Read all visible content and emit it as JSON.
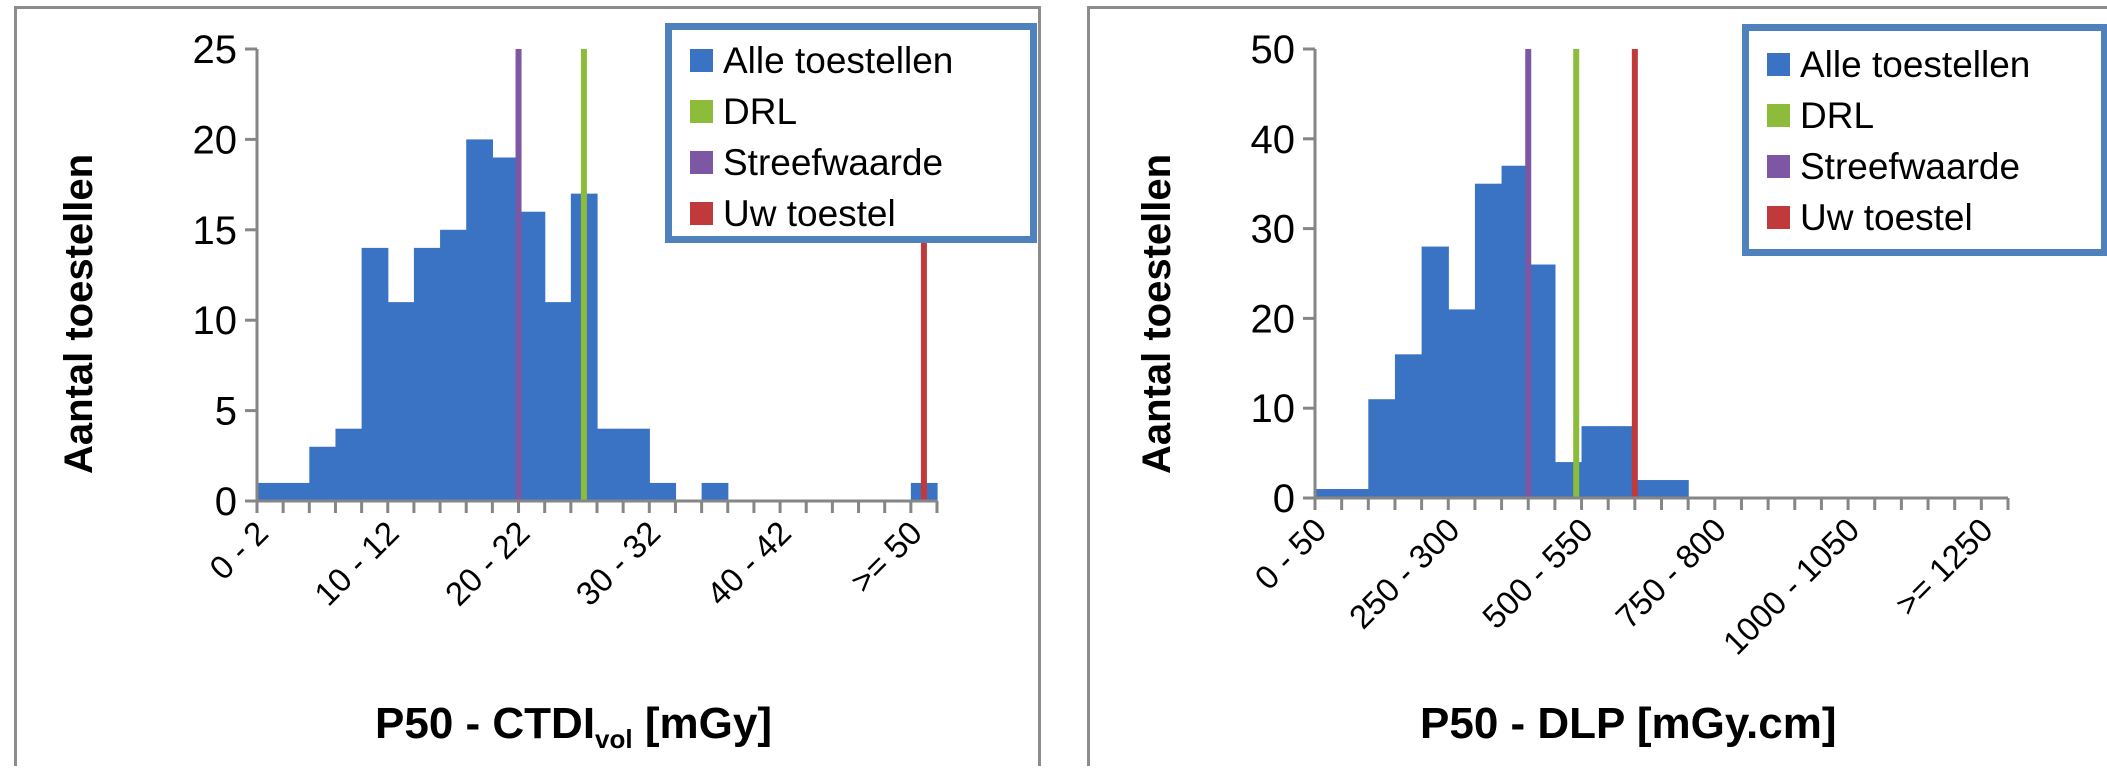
{
  "legend": [
    {
      "label": "Alle toestellen",
      "color": "#3a72c4"
    },
    {
      "label": "DRL",
      "color": "#8dbb3a"
    },
    {
      "label": "Streefwaarde",
      "color": "#7d57a4"
    },
    {
      "label": "Uw toestel",
      "color": "#c0393b"
    }
  ],
  "chart_data": [
    {
      "type": "bar",
      "ylabel": "Aantal toestellen",
      "xlabel_main": "P50 - CTDI",
      "xlabel_sub": "vol",
      "xlabel_unit": " [mGy]",
      "ylim": [
        0,
        25
      ],
      "yticks": [
        "0",
        "5",
        "10",
        "15",
        "20",
        "25"
      ],
      "bin_count": 26,
      "tick_labels": [
        {
          "bin": 0,
          "label": "0 - 2"
        },
        {
          "bin": 5,
          "label": "10 - 12"
        },
        {
          "bin": 10,
          "label": "20 - 22"
        },
        {
          "bin": 15,
          "label": "30 - 32"
        },
        {
          "bin": 20,
          "label": "40 - 42"
        },
        {
          "bin": 25,
          "label": ">= 50"
        }
      ],
      "values": [
        1,
        1,
        3,
        4,
        14,
        11,
        14,
        15,
        20,
        19,
        16,
        11,
        17,
        4,
        4,
        1,
        0,
        1,
        0,
        0,
        0,
        0,
        0,
        0,
        0,
        1
      ],
      "reference_lines": [
        {
          "name": "Streefwaarde",
          "x": 20,
          "color": "#7d57a4"
        },
        {
          "name": "DRL",
          "x": 25,
          "color": "#8dbb3a"
        },
        {
          "name": "Uw toestel",
          "x": 51,
          "color": "#c0393b"
        }
      ],
      "grid": false,
      "legend_position": "top-right"
    },
    {
      "type": "bar",
      "ylabel": "Aantal toestellen",
      "xlabel_main": "P50 - DLP [mGy.cm]",
      "xlabel_sub": "",
      "xlabel_unit": "",
      "ylim": [
        0,
        50
      ],
      "yticks": [
        "0",
        "10",
        "20",
        "30",
        "40",
        "50"
      ],
      "bin_count": 26,
      "tick_labels": [
        {
          "bin": 0,
          "label": "0 - 50"
        },
        {
          "bin": 5,
          "label": "250 - 300"
        },
        {
          "bin": 10,
          "label": "500 - 550"
        },
        {
          "bin": 15,
          "label": "750 - 800"
        },
        {
          "bin": 20,
          "label": "1000 - 1050"
        },
        {
          "bin": 25,
          "label": ">= 1250"
        }
      ],
      "values": [
        1,
        1,
        11,
        16,
        28,
        21,
        35,
        37,
        26,
        4,
        8,
        8,
        2,
        2,
        0,
        0,
        0,
        0,
        0,
        0,
        0,
        0,
        0,
        0,
        0,
        0
      ],
      "reference_lines": [
        {
          "name": "Streefwaarde",
          "x": 400,
          "color": "#7d57a4"
        },
        {
          "name": "DRL",
          "x": 490,
          "color": "#8dbb3a"
        },
        {
          "name": "Uw toestel",
          "x": 600,
          "color": "#c0393b"
        }
      ],
      "grid": false,
      "legend_position": "top-right"
    }
  ]
}
